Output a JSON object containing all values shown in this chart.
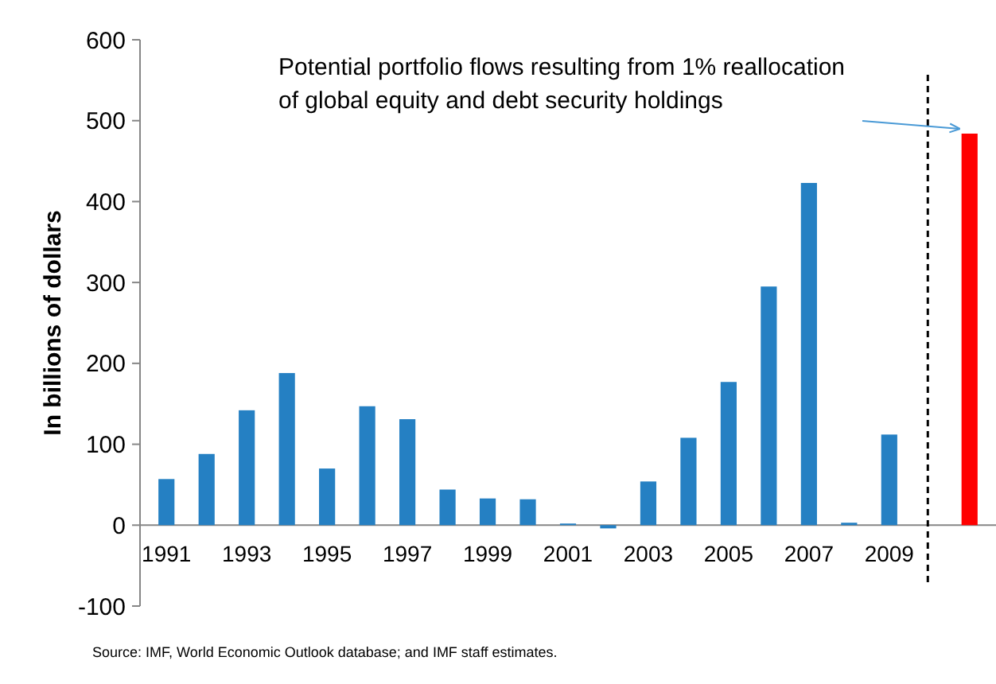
{
  "chart_data": {
    "type": "bar",
    "ylabel": "In billions of dollars",
    "categories": [
      "1991",
      null,
      "1993",
      null,
      "1995",
      null,
      "1997",
      null,
      "1999",
      null,
      "2001",
      null,
      "2003",
      null,
      "2005",
      null,
      "2007",
      null,
      "2009",
      null,
      null
    ],
    "values": [
      57,
      88,
      142,
      188,
      70,
      147,
      131,
      44,
      33,
      32,
      2,
      -4,
      54,
      108,
      177,
      295,
      423,
      3,
      112,
      null,
      484
    ],
    "colors": [
      "#2580c3",
      "#2580c3",
      "#2580c3",
      "#2580c3",
      "#2580c3",
      "#2580c3",
      "#2580c3",
      "#2580c3",
      "#2580c3",
      "#2580c3",
      "#2580c3",
      "#2580c3",
      "#2580c3",
      "#2580c3",
      "#2580c3",
      "#2580c3",
      "#2580c3",
      "#2580c3",
      "#2580c3",
      null,
      "#ff0000"
    ],
    "ylim": [
      -100,
      600
    ],
    "yticks": [
      -100,
      0,
      100,
      200,
      300,
      400,
      500,
      600
    ],
    "annotations": [
      "Potential portfolio flows resulting from 1% reallocation of global equity and debt security holdings",
      "Source: IMF, World Economic Outlook database; and IMF staff estimates."
    ]
  }
}
